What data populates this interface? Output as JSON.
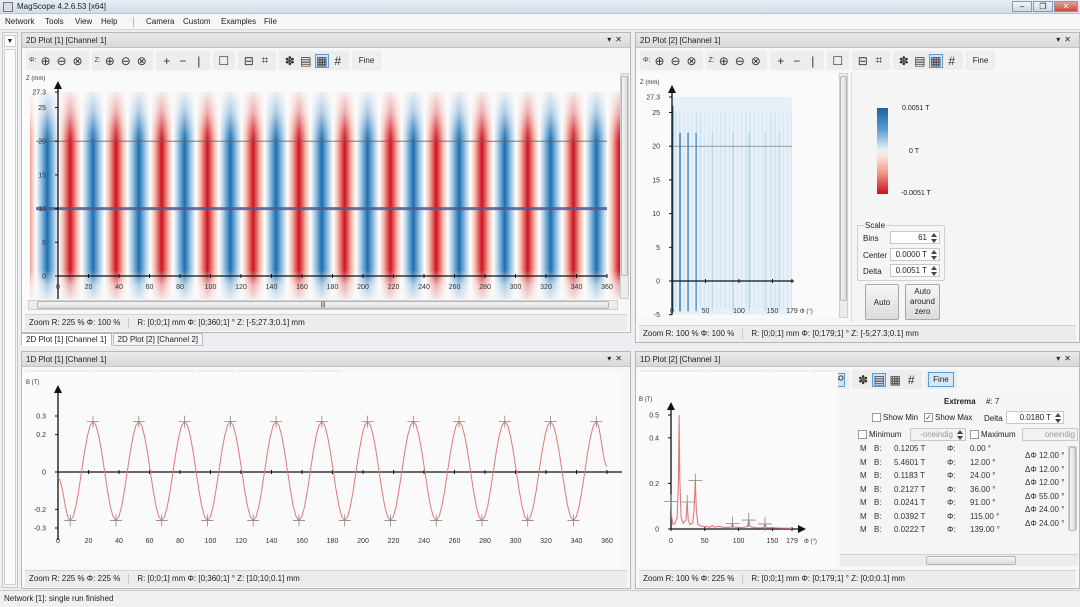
{
  "window": {
    "title": "MagScope 4.2.6.53 [x64]",
    "controls": [
      "–",
      "❐",
      "✕"
    ]
  },
  "menu": [
    "Network",
    "Tools",
    "View",
    "Help",
    "Camera",
    "Custom",
    "Examples",
    "File"
  ],
  "colors": {
    "red": "#d0121f",
    "blue": "#1a6fb3",
    "curve": "#e07a7a"
  },
  "toolbars": {
    "tl": [
      {
        "label": "Φ:"
      },
      {
        "icon": "zoom-in"
      },
      {
        "icon": "zoom-out"
      },
      {
        "icon": "zoom-reset"
      },
      {
        "sep": true
      },
      {
        "label": "Z:"
      },
      {
        "icon": "zoom-in"
      },
      {
        "icon": "zoom-out"
      },
      {
        "icon": "zoom-reset"
      },
      {
        "sep": true
      },
      {
        "icon": "plus"
      },
      {
        "icon": "minus"
      },
      {
        "icon": "vertical-line"
      },
      {
        "sep": true
      },
      {
        "icon": "rectangle"
      },
      {
        "sep": true
      },
      {
        "icon": "fit"
      },
      {
        "icon": "crop"
      },
      {
        "sep": true
      },
      {
        "icon": "palette"
      },
      {
        "icon": "legend"
      },
      {
        "icon": "selection",
        "active": true
      },
      {
        "icon": "grid"
      },
      {
        "sep": true
      },
      {
        "fine": "Fine"
      }
    ],
    "tr": [
      {
        "label": "Φ:"
      },
      {
        "icon": "zoom-in"
      },
      {
        "icon": "zoom-out"
      },
      {
        "icon": "zoom-reset"
      },
      {
        "sep": true
      },
      {
        "label": "Z:"
      },
      {
        "icon": "zoom-in"
      },
      {
        "icon": "zoom-out"
      },
      {
        "icon": "zoom-reset"
      },
      {
        "sep": true
      },
      {
        "icon": "plus"
      },
      {
        "icon": "minus"
      },
      {
        "icon": "vertical-line"
      },
      {
        "sep": true
      },
      {
        "icon": "rectangle"
      },
      {
        "sep": true
      },
      {
        "icon": "fit"
      },
      {
        "icon": "crop"
      },
      {
        "sep": true
      },
      {
        "icon": "palette"
      },
      {
        "icon": "legend"
      },
      {
        "icon": "selection",
        "active": true
      },
      {
        "icon": "grid"
      },
      {
        "sep": true
      },
      {
        "fine": "Fine"
      }
    ],
    "bl": [
      {
        "label": "Φ:"
      },
      {
        "icon": "zoom-in"
      },
      {
        "icon": "zoom-out"
      },
      {
        "icon": "zoom-reset"
      },
      {
        "sep": true
      },
      {
        "label": "B:"
      },
      {
        "icon": "zoom-in"
      },
      {
        "icon": "zoom-out"
      },
      {
        "icon": "zoom-reset"
      },
      {
        "sep": true
      },
      {
        "icon": "minus"
      },
      {
        "icon": "vertical-line"
      },
      {
        "sep": true
      },
      {
        "icon": "fit"
      },
      {
        "icon": "link",
        "active": true
      },
      {
        "sep": true
      },
      {
        "icon": "palette"
      },
      {
        "icon": "legend",
        "active": true
      },
      {
        "icon": "selection"
      },
      {
        "icon": "grid"
      },
      {
        "sep": true
      },
      {
        "fine": "Fine"
      }
    ],
    "br": [
      {
        "label": "Φ:"
      },
      {
        "icon": "zoom-in"
      },
      {
        "icon": "zoom-out"
      },
      {
        "icon": "zoom-reset"
      },
      {
        "sep": true
      },
      {
        "label": "B:"
      },
      {
        "icon": "zoom-in"
      },
      {
        "icon": "zoom-out"
      },
      {
        "icon": "zoom-reset"
      },
      {
        "sep": true
      },
      {
        "icon": "minus"
      },
      {
        "icon": "vertical-line"
      },
      {
        "sep": true
      },
      {
        "icon": "fit"
      },
      {
        "icon": "link",
        "active": true
      },
      {
        "sep": true
      },
      {
        "icon": "palette"
      },
      {
        "icon": "legend",
        "active": true
      },
      {
        "icon": "selection"
      },
      {
        "icon": "grid"
      },
      {
        "sep": true
      },
      {
        "fine": "Fine",
        "active": true
      }
    ]
  },
  "panels": {
    "tl": {
      "title": "2D Plot [1] [Channel 1]",
      "status_zoom": "Zoom R: 225 % Φ: 100 %",
      "status_range": "R: [0;0;1] mm Φ: [0;360;1] ° Z: [-5;27.3;0.1] mm"
    },
    "tr": {
      "title": "2D Plot [2] [Channel 1]",
      "status_zoom": "Zoom R: 100 % Φ: 100 %",
      "status_range": "R: [0;0;1] mm Φ: [0;179;1] ° Z: [-5;27.3;0.1] mm"
    },
    "bl": {
      "title": "1D Plot [1] [Channel 1]",
      "status_zoom": "Zoom R: 225 % Φ: 225 %",
      "status_range": "R: [0;0;1] mm Φ: [0;360;1] ° Z: [10;10;0.1] mm"
    },
    "br": {
      "title": "1D Plot [2] [Channel 1]",
      "status_zoom": "Zoom R: 100 % Φ: 225 %",
      "status_range": "R: [0;0;1] mm Φ: [0;179;1] ° Z: [0;0;0.1] mm"
    }
  },
  "tabs": [
    "2D Plot [1] [Channel 1]",
    "2D Plot [2] [Channel 2]"
  ],
  "colorscale": {
    "max_label": "0.0051 T",
    "mid_label": "0 T",
    "min_label": "-0.0051 T",
    "scale_title": "Scale",
    "bins_label": "Bins",
    "bins": "61",
    "center_label": "Center",
    "center": "0.0000 T",
    "delta_label": "Delta",
    "delta": "0.0051 T",
    "auto_label": "Auto",
    "auto_zero_label": "Auto around zero"
  },
  "extrema": {
    "title": "Extrema",
    "count_label": "#: 7",
    "show_min": "Show Min",
    "show_min_checked": false,
    "show_max": "Show Max",
    "show_max_checked": true,
    "delta_label": "Delta",
    "delta": "0.0180 T",
    "minimum_label": "Minimum",
    "minimum_value": "-oneindig",
    "maximum_label": "Maximum",
    "maximum_value": "oneindig",
    "rows": [
      {
        "m": "M",
        "b_label": "B:",
        "b": "0.1205 T",
        "phi_label": "Φ:",
        "phi": "0.00 °"
      },
      {
        "m": "M",
        "b_label": "B:",
        "b": "5.4601 T",
        "phi_label": "Φ:",
        "phi": "12.00 °"
      },
      {
        "m": "M",
        "b_label": "B:",
        "b": "0.1183 T",
        "phi_label": "Φ:",
        "phi": "24.00 °"
      },
      {
        "m": "M",
        "b_label": "B:",
        "b": "0.2127 T",
        "phi_label": "Φ:",
        "phi": "36.00 °"
      },
      {
        "m": "M",
        "b_label": "B:",
        "b": "0.0241 T",
        "phi_label": "Φ:",
        "phi": "91.00 °"
      },
      {
        "m": "M",
        "b_label": "B:",
        "b": "0.0392 T",
        "phi_label": "Φ:",
        "phi": "115.00 °"
      },
      {
        "m": "M",
        "b_label": "B:",
        "b": "0.0222 T",
        "phi_label": "Φ:",
        "phi": "139.00 °"
      }
    ],
    "deltas": [
      {
        "label": "ΔΦ",
        "value": "12.00 °"
      },
      {
        "label": "ΔΦ",
        "value": "12.00 °"
      },
      {
        "label": "ΔΦ",
        "value": "12.00 °"
      },
      {
        "label": "ΔΦ",
        "value": "55.00 °"
      },
      {
        "label": "ΔΦ",
        "value": "24.00 °"
      },
      {
        "label": "ΔΦ",
        "value": "24.00 °"
      }
    ]
  },
  "statusbar": "Network [1]: single run finished",
  "chart_data": [
    {
      "id": "tl",
      "type": "heatmap",
      "ylabel": "Z (mm)",
      "xlim": [
        0,
        360
      ],
      "ylim": [
        -5,
        27.3
      ],
      "xticks": [
        "0",
        "20",
        "40",
        "60",
        "80",
        "100",
        "120",
        "140",
        "160",
        "180",
        "200",
        "220",
        "240",
        "260",
        "280",
        "300",
        "320",
        "340",
        "360"
      ],
      "yticks": [
        "0",
        "5",
        "10",
        "15",
        "20",
        "25",
        "27.3"
      ],
      "stripe_period_deg": 30,
      "negative_centers_deg_first": 8,
      "positive_centers_deg_first": 23,
      "strong_z_range": [
        0,
        20
      ],
      "hlines_z": [
        20,
        10
      ]
    },
    {
      "id": "tr",
      "type": "heatmap",
      "ylabel": "Z (mm)",
      "xlabel": "Φ (°)",
      "xlim": [
        0,
        179
      ],
      "ylim": [
        -5,
        27.3
      ],
      "xticks": [
        "0",
        "50",
        "100",
        "150",
        "179"
      ],
      "yticks": [
        "-5",
        "0",
        "5",
        "10",
        "15",
        "20",
        "25",
        "27.3"
      ],
      "line_phis": [
        1,
        12,
        24,
        36,
        60,
        91,
        115,
        139,
        160
      ],
      "line_strength": [
        1,
        0.8,
        0.7,
        0.6,
        0.2,
        0.25,
        0.25,
        0.2,
        0.15
      ],
      "hlines_z": [
        20
      ]
    },
    {
      "id": "bl",
      "type": "line",
      "ylabel": "B (T)",
      "xlabel": "Φ (°)",
      "xlim": [
        0,
        360
      ],
      "ylim": [
        -0.3,
        0.3
      ],
      "xticks": [
        "0",
        "20",
        "40",
        "60",
        "80",
        "100",
        "120",
        "140",
        "160",
        "180",
        "200",
        "220",
        "240",
        "260",
        "280",
        "300",
        "320",
        "340",
        "360"
      ],
      "yticks": [
        "-0.3",
        "-0.2",
        "0",
        "0.2",
        "0.3"
      ],
      "points": [
        [
          0,
          -0.03
        ],
        [
          8,
          -0.26
        ],
        [
          23,
          0.27
        ],
        [
          38,
          -0.26
        ],
        [
          53,
          0.27
        ],
        [
          68,
          -0.26
        ],
        [
          83,
          0.27
        ],
        [
          98,
          -0.26
        ],
        [
          113,
          0.27
        ],
        [
          128,
          -0.26
        ],
        [
          143,
          0.27
        ],
        [
          158,
          -0.26
        ],
        [
          173,
          0.27
        ],
        [
          188,
          -0.26
        ],
        [
          203,
          0.27
        ],
        [
          218,
          -0.26
        ],
        [
          233,
          0.27
        ],
        [
          248,
          -0.26
        ],
        [
          263,
          0.27
        ],
        [
          278,
          -0.26
        ],
        [
          293,
          0.27
        ],
        [
          308,
          -0.26
        ],
        [
          323,
          0.27
        ],
        [
          338,
          -0.26
        ],
        [
          353,
          0.27
        ],
        [
          360,
          0.03
        ]
      ]
    },
    {
      "id": "br",
      "type": "line",
      "ylabel": "B (T)",
      "xlabel": "Φ (°)",
      "xlim": [
        0,
        179
      ],
      "ylim": [
        0,
        0.5
      ],
      "xticks": [
        "0",
        "50",
        "100",
        "150",
        "179"
      ],
      "yticks": [
        "0",
        "0.2",
        "0.4",
        "0.5"
      ],
      "points": [
        [
          0,
          0.12
        ],
        [
          1,
          0.05
        ],
        [
          3,
          0.02
        ],
        [
          6,
          0.025
        ],
        [
          9,
          0.05
        ],
        [
          11,
          0.2
        ],
        [
          12,
          0.5
        ],
        [
          13,
          0.22
        ],
        [
          15,
          0.05
        ],
        [
          18,
          0.025
        ],
        [
          22,
          0.04
        ],
        [
          24,
          0.12
        ],
        [
          25.5,
          0.04
        ],
        [
          28,
          0.02
        ],
        [
          32,
          0.025
        ],
        [
          34,
          0.08
        ],
        [
          36,
          0.21
        ],
        [
          37.5,
          0.08
        ],
        [
          40,
          0.02
        ],
        [
          45,
          0.012
        ],
        [
          58,
          0.008
        ],
        [
          61,
          0.016
        ],
        [
          64,
          0.008
        ],
        [
          70,
          0.012
        ],
        [
          80,
          0.006
        ],
        [
          89,
          0.008
        ],
        [
          91,
          0.024
        ],
        [
          93,
          0.008
        ],
        [
          105,
          0.006
        ],
        [
          113,
          0.01
        ],
        [
          115,
          0.039
        ],
        [
          117,
          0.01
        ],
        [
          127,
          0.005
        ],
        [
          137,
          0.006
        ],
        [
          139,
          0.022
        ],
        [
          141,
          0.006
        ],
        [
          160,
          0.004
        ],
        [
          179,
          0.003
        ]
      ],
      "markers": [
        [
          0,
          0.1205
        ],
        [
          24,
          0.1183
        ],
        [
          36,
          0.2127
        ],
        [
          91,
          0.0241
        ],
        [
          115,
          0.0392
        ],
        [
          139,
          0.0222
        ]
      ]
    }
  ]
}
